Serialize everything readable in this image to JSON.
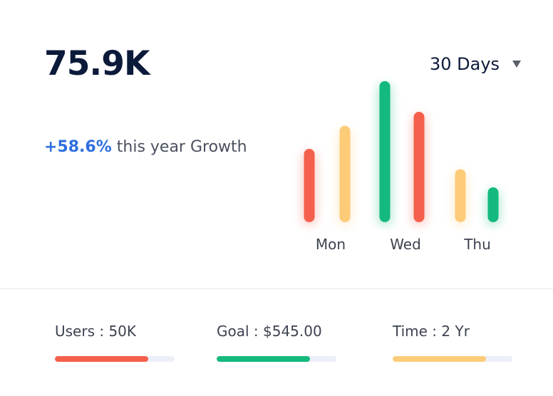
{
  "summary": {
    "value": "75.9K",
    "growth_pct": "+58.6%",
    "growth_text": " this year Growth"
  },
  "period_select": {
    "selected": "30 Days",
    "icon": "chevron-down-icon"
  },
  "colors": {
    "red": "#f4604b",
    "yellow": "#fdcc79",
    "green": "#14b97d",
    "accent_blue": "#2f6fe0",
    "track": "#eceef8"
  },
  "chart_data": {
    "type": "bar",
    "x_labels": [
      "Mon",
      "Wed",
      "Thu"
    ],
    "bars": [
      {
        "value": 105,
        "color": "red"
      },
      {
        "value": 138,
        "color": "yellow"
      },
      {
        "value": 202,
        "color": "green"
      },
      {
        "value": 158,
        "color": "red"
      },
      {
        "value": 76,
        "color": "yellow"
      },
      {
        "value": 50,
        "color": "green"
      }
    ],
    "ylim": [
      0,
      210
    ],
    "grid": false,
    "legend": "none"
  },
  "stats": [
    {
      "label": "Users : 50K",
      "progress": 0.78,
      "color": "red"
    },
    {
      "label": "Goal : $545.00",
      "progress": 0.78,
      "color": "green"
    },
    {
      "label": "Time : 2 Yr",
      "progress": 0.78,
      "color": "yellow"
    }
  ]
}
